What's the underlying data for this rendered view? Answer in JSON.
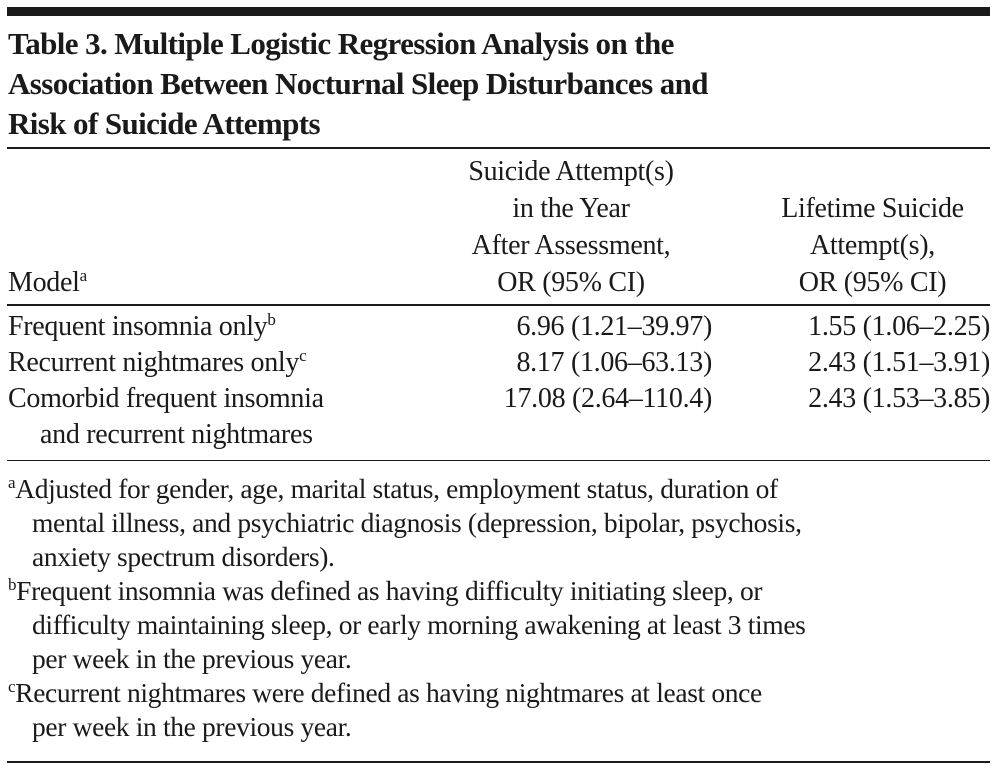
{
  "title": {
    "lines": [
      "Table 3. Multiple Logistic Regression Analysis on the",
      "Association Between Nocturnal Sleep Disturbances and",
      "Risk of Suicide Attempts"
    ]
  },
  "table": {
    "headers": {
      "model": {
        "label": "Model",
        "sup": "a"
      },
      "col2": [
        "Suicide Attempt(s)",
        "in the Year",
        "After Assessment,",
        "OR (95% CI)"
      ],
      "col3": [
        "Lifetime Suicide",
        "Attempt(s),",
        "OR (95% CI)"
      ]
    },
    "rows": [
      {
        "model": "Frequent insomnia only",
        "sup": "b",
        "col2": "6.96 (1.21–39.97)",
        "col3": "1.55 (1.06–2.25)"
      },
      {
        "model": "Recurrent nightmares only",
        "sup": "c",
        "col2": "8.17 (1.06–63.13)",
        "col3": "2.43 (1.51–3.91)"
      },
      {
        "model": "Comorbid frequent insomnia",
        "model_cont": "and recurrent nightmares",
        "col2": "17.08 (2.64–110.4)",
        "col3": "2.43 (1.53–3.85)"
      }
    ]
  },
  "footnotes": [
    {
      "mark": "a",
      "lines": [
        "Adjusted for gender, age, marital status, employment status, duration of",
        "mental illness, and psychiatric diagnosis (depression, bipolar, psychosis,",
        "anxiety spectrum disorders)."
      ]
    },
    {
      "mark": "b",
      "lines": [
        "Frequent insomnia was defined as having difficulty initiating sleep, or",
        "difficulty maintaining sleep, or early morning awakening at least 3 times",
        "per week in the previous year."
      ]
    },
    {
      "mark": "c",
      "lines": [
        "Recurrent nightmares were defined as having nightmares at least once",
        "per week in the previous year."
      ]
    }
  ]
}
